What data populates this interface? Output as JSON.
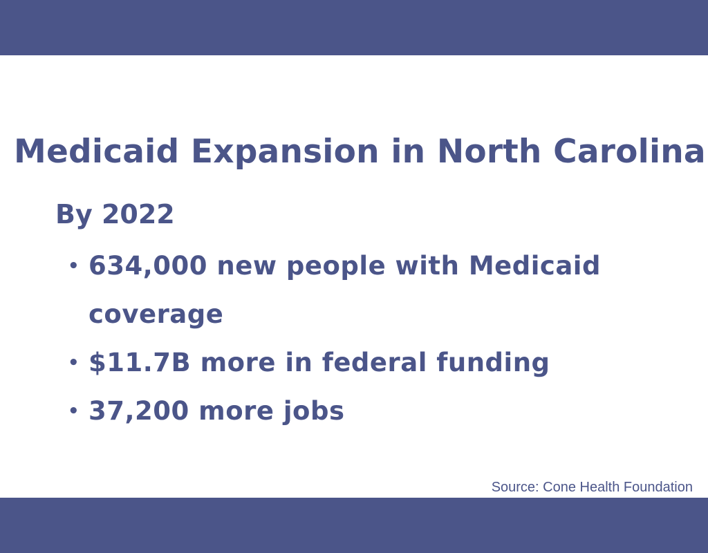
{
  "title": "Medicaid Expansion in North Carolina",
  "subtitle": "By 2022",
  "bullets": [
    "634,000 new people with Medicaid coverage",
    "$11.7B more in federal funding",
    "37,200 more jobs"
  ],
  "source": "Source: Cone Health Foundation"
}
